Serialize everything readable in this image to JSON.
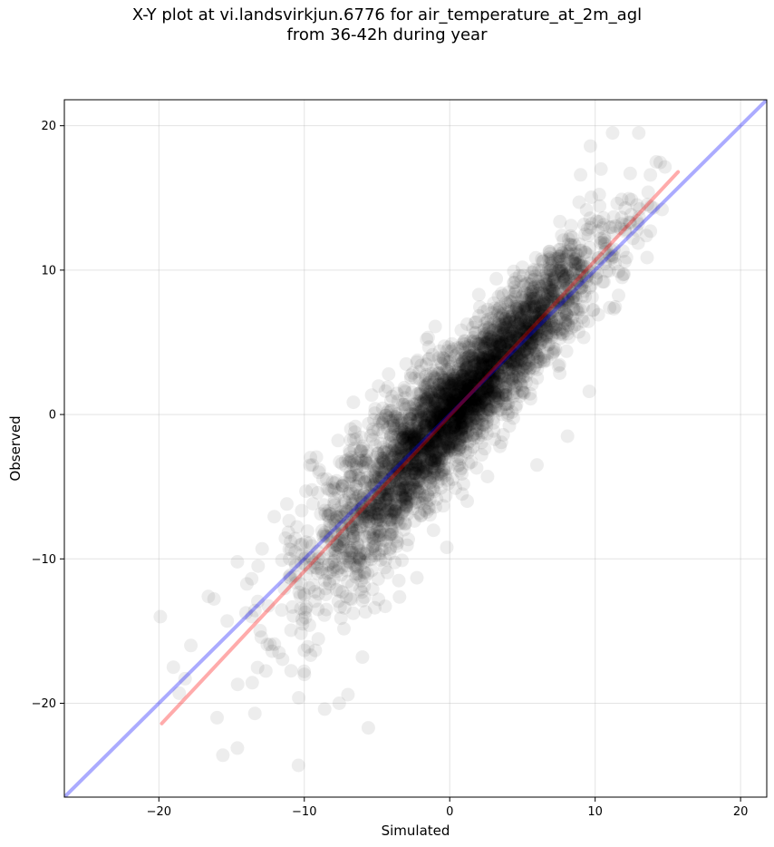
{
  "chart_data": {
    "type": "scatter",
    "title": "X-Y plot at vi.landsvirkjun.6776 for air_temperature_at_2m_agl\nfrom 36-42h during year",
    "xlabel": "Simulated",
    "ylabel": "Observed",
    "xlim": [
      -26.5,
      21.8
    ],
    "ylim": [
      -26.5,
      21.8
    ],
    "x_ticks": [
      -20,
      -10,
      0,
      10,
      20
    ],
    "y_ticks": [
      -20,
      -10,
      0,
      10,
      20
    ],
    "x_tick_labels": [
      "−20",
      "−10",
      "0",
      "10",
      "20"
    ],
    "y_tick_labels": [
      "−20",
      "−10",
      "0",
      "10",
      "20"
    ],
    "grid": true,
    "point_color": "#000000",
    "point_opacity": 0.07,
    "point_count_estimate": 4000,
    "cloud": {
      "x_range": [
        -20,
        15.5
      ],
      "regression_slope": 1.08,
      "regression_intercept": 0.0,
      "spread_sd": 1.9
    },
    "lines": [
      {
        "kind": "identity",
        "color": "#0000ff",
        "opacity": 0.33,
        "x": [
          -26.5,
          21.8
        ],
        "y": [
          -26.5,
          21.8
        ]
      },
      {
        "kind": "fit",
        "color": "#ff0000",
        "opacity": 0.33,
        "x": [
          -19.8,
          15.7
        ],
        "y": [
          -21.4,
          16.8
        ]
      }
    ],
    "outlier_points": [
      [
        -19.9,
        -14.0
      ],
      [
        -19.0,
        -17.5
      ],
      [
        -18.6,
        -19.3
      ],
      [
        -18.2,
        -18.3
      ],
      [
        -17.8,
        -16.0
      ],
      [
        -16.6,
        -12.6
      ],
      [
        -16.0,
        -21.0
      ],
      [
        -15.6,
        -23.6
      ],
      [
        -14.6,
        -23.1
      ],
      [
        -13.4,
        -20.7
      ],
      [
        -10.4,
        -24.3
      ],
      [
        -10.0,
        -18.0
      ],
      [
        -8.6,
        -20.4
      ],
      [
        -7.6,
        -20.0
      ],
      [
        -7.0,
        -19.4
      ],
      [
        -5.6,
        -21.7
      ],
      [
        -6.0,
        -16.8
      ],
      [
        -4.9,
        -12.8
      ],
      [
        -3.5,
        -11.5
      ],
      [
        -4.2,
        2.8
      ],
      [
        -2.5,
        -6.5
      ],
      [
        -0.2,
        -9.2
      ],
      [
        1.2,
        -6.0
      ],
      [
        2.6,
        -4.3
      ],
      [
        4.1,
        -0.8
      ],
      [
        6.0,
        -3.5
      ],
      [
        8.1,
        -1.5
      ],
      [
        9.6,
        1.6
      ],
      [
        11.0,
        7.4
      ],
      [
        12.6,
        12.2
      ],
      [
        13.8,
        12.7
      ],
      [
        14.6,
        14.2
      ],
      [
        13.0,
        19.5
      ],
      [
        14.2,
        17.5
      ],
      [
        11.2,
        19.5
      ],
      [
        10.4,
        17.0
      ],
      [
        9.0,
        16.6
      ],
      [
        8.9,
        14.7
      ],
      [
        7.7,
        12.4
      ],
      [
        5.0,
        10.2
      ],
      [
        3.2,
        9.4
      ],
      [
        2.0,
        8.3
      ],
      [
        -1.0,
        6.1
      ],
      [
        -3.0,
        3.5
      ],
      [
        -6.8,
        -1.0
      ],
      [
        -9.0,
        -4.0
      ],
      [
        -11.2,
        -6.2
      ],
      [
        -12.9,
        -9.3
      ],
      [
        -14.6,
        -10.2
      ],
      [
        -15.3,
        -14.3
      ]
    ]
  }
}
